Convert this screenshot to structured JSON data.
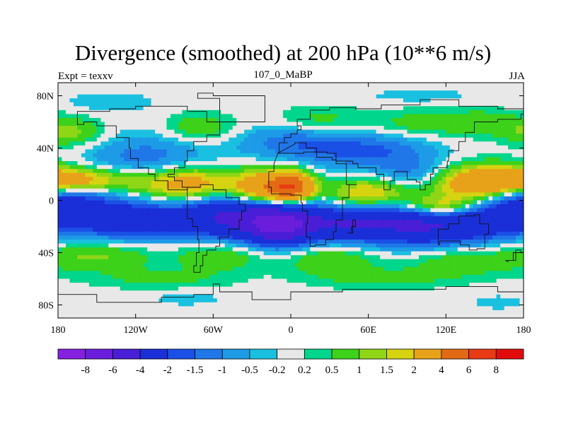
{
  "chart_data": {
    "type": "heatmap",
    "title": "Divergence (smoothed) at 200 hPa (10**6 m/s)",
    "subtitle_left": "Expt = texxv",
    "subtitle_center": "107_0_MaBP",
    "subtitle_right": "JJA",
    "x_range": [
      -180,
      180
    ],
    "y_range": [
      -90,
      90
    ],
    "x_ticks": [
      {
        "value": -180,
        "label": "180"
      },
      {
        "value": -120,
        "label": "120W"
      },
      {
        "value": -60,
        "label": "60W"
      },
      {
        "value": 0,
        "label": "0"
      },
      {
        "value": 60,
        "label": "60E"
      },
      {
        "value": 120,
        "label": "120E"
      },
      {
        "value": 180,
        "label": "180"
      }
    ],
    "y_ticks": [
      {
        "value": 80,
        "label": "80N"
      },
      {
        "value": 40,
        "label": "40N"
      },
      {
        "value": 0,
        "label": "0"
      },
      {
        "value": -40,
        "label": "40S"
      },
      {
        "value": -80,
        "label": "80S"
      }
    ],
    "colorbar_levels": [
      "-8",
      "-6",
      "-4",
      "-2",
      "-1.5",
      "-1",
      "-0.5",
      "-0.2",
      "0.2",
      "0.5",
      "1",
      "1.5",
      "2",
      "4",
      "6",
      "8"
    ],
    "colorbar_colors": [
      "#8420e0",
      "#6a1edc",
      "#4a1ed6",
      "#1a2fd8",
      "#1a50e6",
      "#1f77e8",
      "#1d9be6",
      "#1ac0e0",
      "#e8e8e8",
      "#00d68c",
      "#3dd11a",
      "#8fd616",
      "#d6d310",
      "#e8a21a",
      "#e36a14",
      "#e83a14",
      "#e30c0c"
    ],
    "features": [
      {
        "lon": -175,
        "lat": 3,
        "sx": 24,
        "sy": 7,
        "value": -2.5
      },
      {
        "lon": -130,
        "lat": -15,
        "sx": 30,
        "sy": 10,
        "value": -3.2
      },
      {
        "lon": -40,
        "lat": -12,
        "sx": 35,
        "sy": 12,
        "value": -4.5
      },
      {
        "lon": -8,
        "lat": -20,
        "sx": 18,
        "sy": 10,
        "value": -4.5
      },
      {
        "lon": 45,
        "lat": -18,
        "sx": 30,
        "sy": 9,
        "value": -3.2
      },
      {
        "lon": 110,
        "lat": -18,
        "sx": 35,
        "sy": 12,
        "value": -4.0
      },
      {
        "lon": 165,
        "lat": -12,
        "sx": 22,
        "sy": 10,
        "value": -2.0
      },
      {
        "lon": -110,
        "lat": 30,
        "sx": 35,
        "sy": 14,
        "value": -1.4
      },
      {
        "lon": 0,
        "lat": 45,
        "sx": 30,
        "sy": 10,
        "value": -1.2
      },
      {
        "lon": 60,
        "lat": 38,
        "sx": 35,
        "sy": 10,
        "value": -1.6
      },
      {
        "lon": 95,
        "lat": 20,
        "sx": 20,
        "sy": 8,
        "value": -1.1
      },
      {
        "lon": -160,
        "lat": 15,
        "sx": 35,
        "sy": 7,
        "value": 2.4
      },
      {
        "lon": -80,
        "lat": 12,
        "sx": 25,
        "sy": 10,
        "value": 3.0
      },
      {
        "lon": -22,
        "lat": 8,
        "sx": 18,
        "sy": 10,
        "value": 3.5
      },
      {
        "lon": 0,
        "lat": 10,
        "sx": 12,
        "sy": 8,
        "value": 5.0
      },
      {
        "lon": 60,
        "lat": 5,
        "sx": 22,
        "sy": 8,
        "value": 2.3
      },
      {
        "lon": 115,
        "lat": -5,
        "sx": 20,
        "sy": 6,
        "value": 3.0
      },
      {
        "lon": 150,
        "lat": 12,
        "sx": 28,
        "sy": 10,
        "value": 3.5
      },
      {
        "lon": -170,
        "lat": 52,
        "sx": 18,
        "sy": 8,
        "value": 1.2
      },
      {
        "lon": -70,
        "lat": 55,
        "sx": 20,
        "sy": 8,
        "value": 1.0
      },
      {
        "lon": 20,
        "lat": 60,
        "sx": 25,
        "sy": 8,
        "value": 0.8
      },
      {
        "lon": 100,
        "lat": 58,
        "sx": 30,
        "sy": 8,
        "value": 0.8
      },
      {
        "lon": 150,
        "lat": 60,
        "sx": 20,
        "sy": 8,
        "value": 0.6
      },
      {
        "lon": -150,
        "lat": -42,
        "sx": 30,
        "sy": 8,
        "value": 1.1
      },
      {
        "lon": -55,
        "lat": -42,
        "sx": 25,
        "sy": 8,
        "value": 1.0
      },
      {
        "lon": 30,
        "lat": -45,
        "sx": 25,
        "sy": 8,
        "value": 1.0
      },
      {
        "lon": 130,
        "lat": -45,
        "sx": 30,
        "sy": 9,
        "value": 1.0
      },
      {
        "lon": -100,
        "lat": -60,
        "sx": 40,
        "sy": 6,
        "value": 0.6
      },
      {
        "lon": 70,
        "lat": -60,
        "sx": 40,
        "sy": 6,
        "value": 0.6
      },
      {
        "lon": -140,
        "lat": 75,
        "sx": 25,
        "sy": 5,
        "value": -0.5
      },
      {
        "lon": 100,
        "lat": 80,
        "sx": 30,
        "sy": 4,
        "value": -0.4
      },
      {
        "lon": -80,
        "lat": -75,
        "sx": 20,
        "sy": 4,
        "value": -0.4
      },
      {
        "lon": 160,
        "lat": -78,
        "sx": 15,
        "sy": 4,
        "value": -0.4
      }
    ]
  }
}
